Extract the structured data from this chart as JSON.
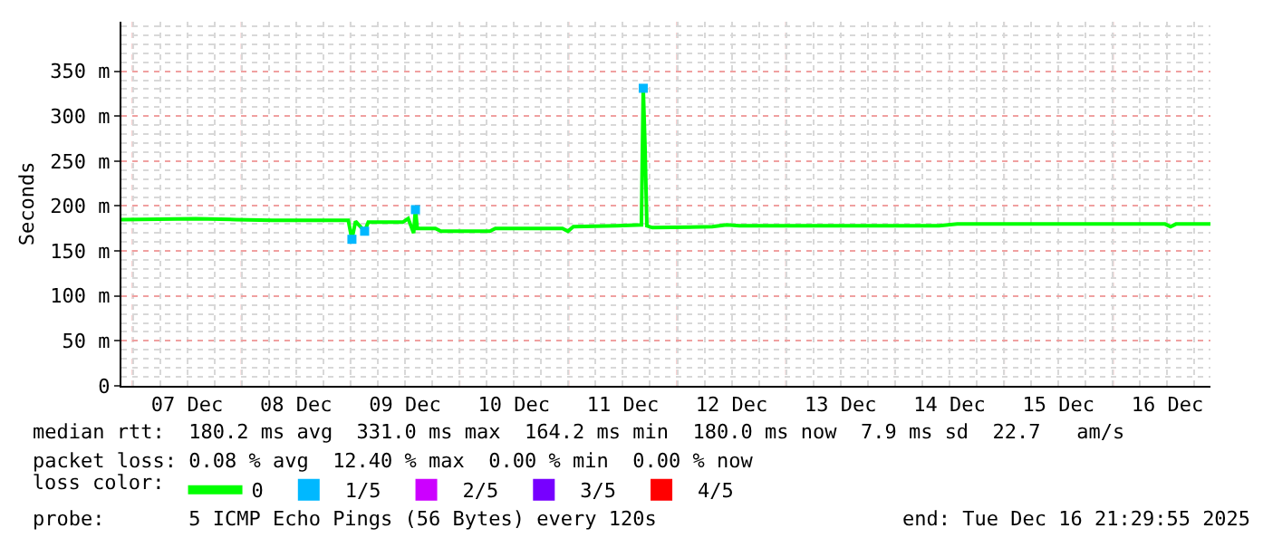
{
  "chart_data": {
    "type": "line",
    "ylabel": "Seconds",
    "legend_title": "loss color:",
    "xlim": [
      "2025-12-06T21:30",
      "2025-12-16T21:30"
    ],
    "xticks": [
      {
        "value": "2025-12-07T12:00",
        "label": "07 Dec"
      },
      {
        "value": "2025-12-08T12:00",
        "label": "08 Dec"
      },
      {
        "value": "2025-12-09T12:00",
        "label": "09 Dec"
      },
      {
        "value": "2025-12-10T12:00",
        "label": "10 Dec"
      },
      {
        "value": "2025-12-11T12:00",
        "label": "11 Dec"
      },
      {
        "value": "2025-12-12T12:00",
        "label": "12 Dec"
      },
      {
        "value": "2025-12-13T12:00",
        "label": "13 Dec"
      },
      {
        "value": "2025-12-14T12:00",
        "label": "14 Dec"
      },
      {
        "value": "2025-12-15T12:00",
        "label": "15 Dec"
      },
      {
        "value": "2025-12-16T12:00",
        "label": "16 Dec"
      }
    ],
    "ylim": [
      0,
      405
    ],
    "yticks": [
      0,
      {
        "value": 50,
        "label": "50 m"
      },
      {
        "value": 100,
        "label": "100 m"
      },
      {
        "value": 150,
        "label": "150 m"
      },
      {
        "value": 200,
        "label": "200 m"
      },
      {
        "value": 250,
        "label": "250 m"
      },
      {
        "value": 300,
        "label": "300 m"
      },
      {
        "value": 350,
        "label": "350 m"
      }
    ],
    "grid": true,
    "legend": "bottom",
    "series": [
      {
        "name": "0",
        "color": "#00ff00",
        "x": [
          "2025-12-06T21:30",
          "2025-12-07T13:54",
          "2025-12-07T22:42",
          "2025-12-08T06:42",
          "2025-12-08T23:30",
          "2025-12-09T00:18",
          "2025-12-09T01:06",
          "2025-12-09T03:06",
          "2025-12-09T03:54",
          "2025-12-09T11:30",
          "2025-12-09T12:42",
          "2025-12-09T13:54",
          "2025-12-09T14:18",
          "2025-12-09T14:42",
          "2025-12-09T18:42",
          "2025-12-09T19:54",
          "2025-12-10T06:42",
          "2025-12-10T07:54",
          "2025-12-10T22:42",
          "2025-12-10T23:54",
          "2025-12-11T01:06",
          "2025-12-11T10:42",
          "2025-12-11T16:06",
          "2025-12-11T16:30",
          "2025-12-11T16:54",
          "2025-12-11T17:18",
          "2025-12-11T18:30",
          "2025-12-12T07:42",
          "2025-12-12T10:54",
          "2025-12-12T13:42",
          "2025-12-13T13:42",
          "2025-12-14T09:42",
          "2025-12-14T13:42",
          "2025-12-15T23:42",
          "2025-12-16T11:30",
          "2025-12-16T12:42",
          "2025-12-16T13:54",
          "2025-12-16T21:30"
        ],
        "values": [
          185,
          186,
          185,
          184,
          184,
          163,
          183,
          172,
          182,
          182,
          186,
          170,
          196,
          175,
          175,
          172,
          172,
          175,
          175,
          172,
          177,
          178,
          179,
          331,
          265,
          178,
          176,
          177,
          179,
          178,
          178,
          178,
          180,
          180,
          180,
          177,
          180,
          180
        ]
      },
      {
        "name": "1/5",
        "color": "#00b8ff",
        "type": "scatter",
        "marker": "square",
        "x": [
          "2025-12-09T00:18",
          "2025-12-09T03:06",
          "2025-12-09T14:18",
          "2025-12-11T16:30"
        ],
        "values": [
          163,
          172,
          196,
          331
        ]
      },
      {
        "name": "2/5",
        "color": "#cc00ff",
        "type": "scatter",
        "marker": "square"
      },
      {
        "name": "3/5",
        "color": "#7700ff",
        "type": "scatter",
        "marker": "square"
      },
      {
        "name": "4/5",
        "color": "#ff0000",
        "type": "scatter",
        "marker": "square"
      }
    ],
    "annotations": [
      "median rtt:  180.2 ms avg  331.0 ms max  164.2 ms min  180.0 ms now  7.9 ms sd  22.7   am/s",
      "packet loss: 0.08 % avg  12.40 % max  0.00 % min  0.00 % now",
      "probe:       5 ICMP Echo Pings (56 Bytes) every 120s",
      "end: Tue Dec 16 21:29:55 2025"
    ]
  }
}
